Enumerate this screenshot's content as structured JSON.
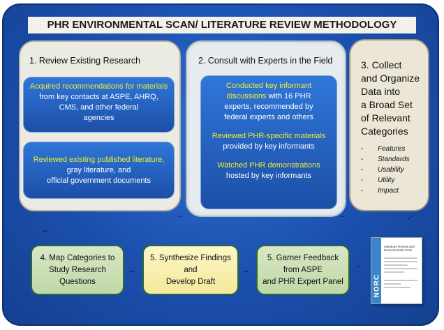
{
  "title": "PHR ENVIRONMENTAL SCAN/ LITERATURE REVIEW METHODOLOGY",
  "panel1": {
    "heading": "1. Review Existing Research",
    "box1": {
      "highlight": "Acquired recommendations for materials",
      "line1": "from key contacts at ASPE, AHRQ,",
      "line2": "CMS, and other federal",
      "line3": "agencies"
    },
    "box2": {
      "highlight": "Reviewed existing published literature,",
      "line1": "gray literature, and",
      "line2": "official government documents"
    }
  },
  "panel2": {
    "heading": "2. Consult with Experts in the Field",
    "item1": {
      "highlight1": "Conducted key informant",
      "highlight2": "discussions",
      "rest": " with 16 PHR",
      "line2": "experts, recommended by",
      "line3": "federal experts and others"
    },
    "item2": {
      "highlight": "Reviewed PHR-specific materials",
      "line2": "provided by key informants"
    },
    "item3": {
      "highlight": "Watched PHR demonstrations",
      "line2": "hosted by key informants"
    }
  },
  "panel3": {
    "heading_lines": [
      "3. Collect",
      "and Organize",
      "Data into",
      "a Broad Set",
      "of Relevant",
      "Categories"
    ],
    "features": [
      "Features",
      "Standards",
      "Usability",
      "Utility",
      "Impact"
    ]
  },
  "steps": [
    {
      "line1": "4. Map Categories to",
      "line2": "Study Research",
      "line3": "Questions"
    },
    {
      "line1": "5. Synthesize Findings",
      "line2": "and",
      "line3": "Develop Draft"
    },
    {
      "line1": "5. Garner Feedback",
      "line2": "from ASPE",
      "line3": "and PHR Expert Panel"
    }
  ],
  "report": {
    "logo": "NORC",
    "title": "Literature Review and Environmental Scan"
  },
  "arrow_glyph": "→",
  "colors": {
    "frame": "#1b4fae",
    "highlight": "#f5ef2a",
    "step_green": "#bfd8a6",
    "step_yellow": "#f4e89a"
  }
}
